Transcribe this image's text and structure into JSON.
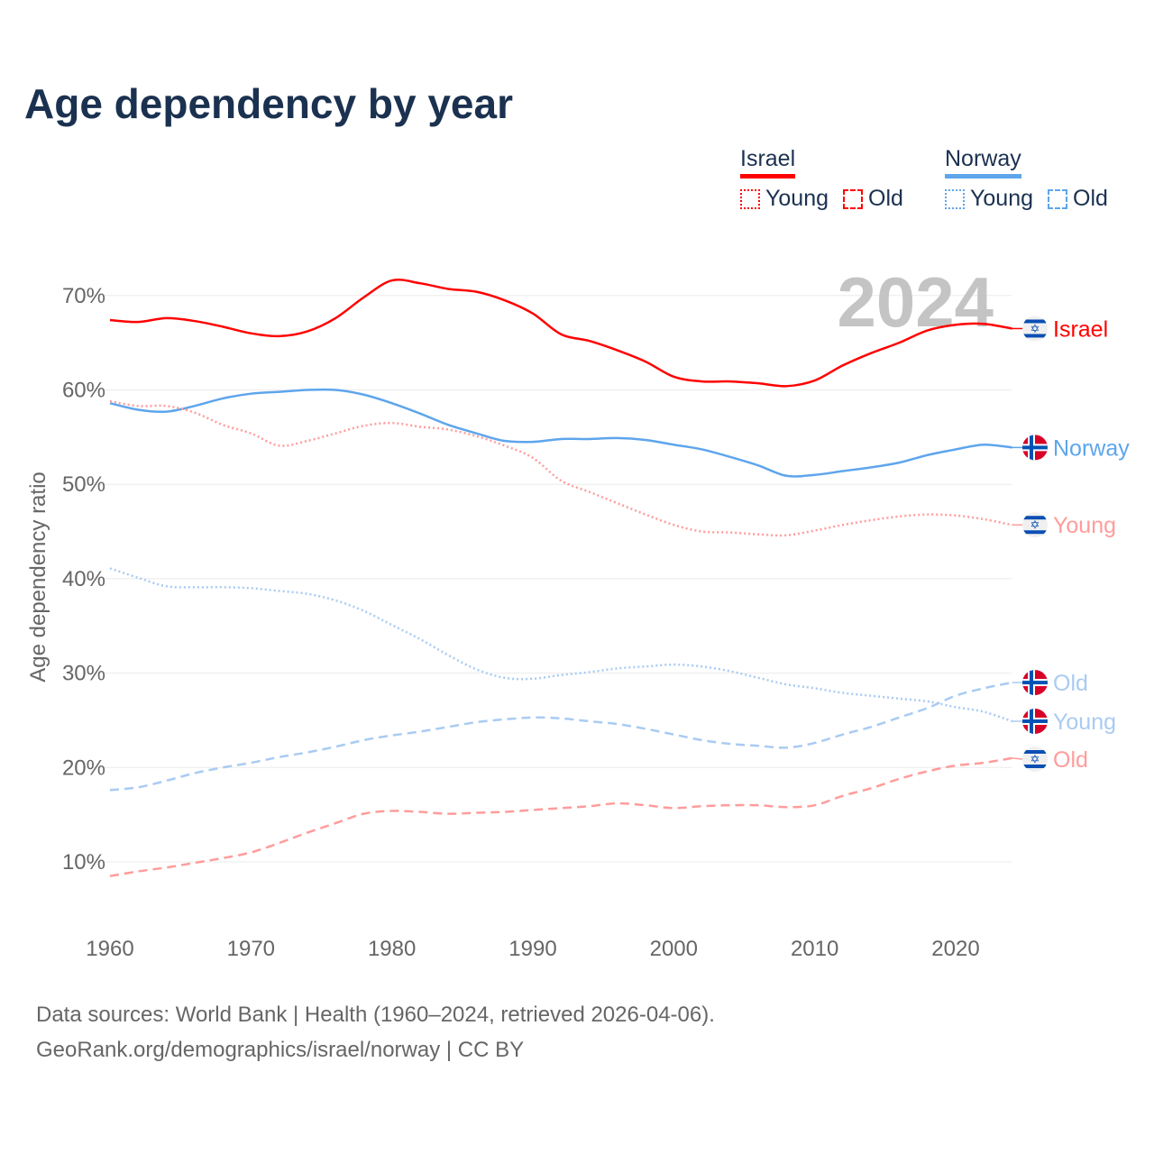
{
  "title": "Age dependency by year",
  "legend": {
    "groups": [
      {
        "name": "Israel",
        "color": "#ff0000",
        "items": [
          {
            "label": "Young",
            "style": "dotted"
          },
          {
            "label": "Old",
            "style": "dashed"
          }
        ]
      },
      {
        "name": "Norway",
        "color": "#5ea5ec",
        "items": [
          {
            "label": "Young",
            "style": "dotted"
          },
          {
            "label": "Old",
            "style": "dashed"
          }
        ]
      }
    ]
  },
  "year_watermark": "2024",
  "footer": {
    "line1": "Data sources: World Bank | Health (1960–2024, retrieved 2026-04-06).",
    "line2": "GeoRank.org/demographics/israel/norway | CC BY"
  },
  "chart_data": {
    "type": "line",
    "title": "Age dependency by year",
    "xlabel": "",
    "ylabel": "Age dependency ratio",
    "xlim": [
      1960,
      2024
    ],
    "ylim": [
      0,
      75
    ],
    "x_ticks": [
      "1960",
      "1970",
      "1980",
      "1990",
      "2000",
      "2010",
      "2020"
    ],
    "y_ticks": [
      "10%",
      "20%",
      "30%",
      "40%",
      "50%",
      "60%",
      "70%"
    ],
    "grid": true,
    "x": [
      1960,
      1962,
      1964,
      1966,
      1968,
      1970,
      1972,
      1974,
      1976,
      1978,
      1980,
      1982,
      1984,
      1986,
      1988,
      1990,
      1992,
      1994,
      1996,
      1998,
      2000,
      2002,
      2004,
      2006,
      2008,
      2010,
      2012,
      2014,
      2016,
      2018,
      2020,
      2022,
      2024
    ],
    "series": [
      {
        "name": "Israel",
        "end_label": "Israel",
        "flag": "israel",
        "color": "#ff0000",
        "dash": "solid",
        "values": [
          67.4,
          67.2,
          67.6,
          67.3,
          66.7,
          66.0,
          65.7,
          66.2,
          67.6,
          69.8,
          71.6,
          71.3,
          70.7,
          70.4,
          69.5,
          68.1,
          65.9,
          65.2,
          64.2,
          63.0,
          61.4,
          60.9,
          60.9,
          60.7,
          60.4,
          61.0,
          62.6,
          63.9,
          65.0,
          66.3,
          66.9,
          67.0,
          66.5
        ]
      },
      {
        "name": "Norway",
        "end_label": "Norway",
        "flag": "norway",
        "color": "#5ea5ec",
        "dash": "solid",
        "values": [
          58.6,
          57.9,
          57.7,
          58.3,
          59.1,
          59.6,
          59.8,
          60.0,
          60.0,
          59.5,
          58.6,
          57.5,
          56.3,
          55.4,
          54.6,
          54.5,
          54.8,
          54.8,
          54.9,
          54.7,
          54.2,
          53.7,
          52.9,
          52.0,
          50.9,
          51.0,
          51.4,
          51.8,
          52.3,
          53.1,
          53.7,
          54.2,
          53.9
        ]
      },
      {
        "name": "Israel Young",
        "end_label": "Young",
        "flag": "israel",
        "color": "#ff9c9c",
        "dash": "dotted",
        "values": [
          58.8,
          58.3,
          58.3,
          57.6,
          56.3,
          55.4,
          54.1,
          54.6,
          55.4,
          56.2,
          56.5,
          56.1,
          55.8,
          55.1,
          54.1,
          52.8,
          50.4,
          49.2,
          48.0,
          46.8,
          45.7,
          45.0,
          44.9,
          44.7,
          44.6,
          45.1,
          45.7,
          46.2,
          46.6,
          46.8,
          46.7,
          46.3,
          45.7
        ]
      },
      {
        "name": "Norway Old",
        "end_label": "Old",
        "flag": "norway",
        "color": "#a9cbf2",
        "dash": "dashed",
        "values": [
          17.6,
          17.9,
          18.6,
          19.4,
          20.0,
          20.5,
          21.1,
          21.6,
          22.2,
          22.9,
          23.4,
          23.8,
          24.3,
          24.8,
          25.1,
          25.3,
          25.2,
          24.9,
          24.6,
          24.1,
          23.5,
          22.9,
          22.5,
          22.3,
          22.1,
          22.6,
          23.5,
          24.3,
          25.3,
          26.3,
          27.6,
          28.4,
          29.0
        ]
      },
      {
        "name": "Norway Young",
        "end_label": "Young",
        "flag": "norway",
        "color": "#a9cbf2",
        "dash": "dotted",
        "values": [
          41.1,
          40.1,
          39.2,
          39.1,
          39.1,
          39.0,
          38.7,
          38.4,
          37.7,
          36.6,
          35.1,
          33.6,
          31.9,
          30.4,
          29.5,
          29.4,
          29.8,
          30.1,
          30.5,
          30.7,
          30.9,
          30.7,
          30.2,
          29.5,
          28.8,
          28.4,
          27.9,
          27.6,
          27.3,
          27.0,
          26.4,
          25.9,
          24.9
        ]
      },
      {
        "name": "Israel Old",
        "end_label": "Old",
        "flag": "israel",
        "color": "#ff9c9c",
        "dash": "dashed",
        "values": [
          8.5,
          9.0,
          9.4,
          9.9,
          10.4,
          11.0,
          12.0,
          13.1,
          14.1,
          15.1,
          15.4,
          15.3,
          15.1,
          15.2,
          15.3,
          15.5,
          15.7,
          15.9,
          16.2,
          16.0,
          15.7,
          15.9,
          16.0,
          16.0,
          15.8,
          16.0,
          17.0,
          17.8,
          18.8,
          19.6,
          20.2,
          20.5,
          21.0
        ]
      }
    ]
  }
}
